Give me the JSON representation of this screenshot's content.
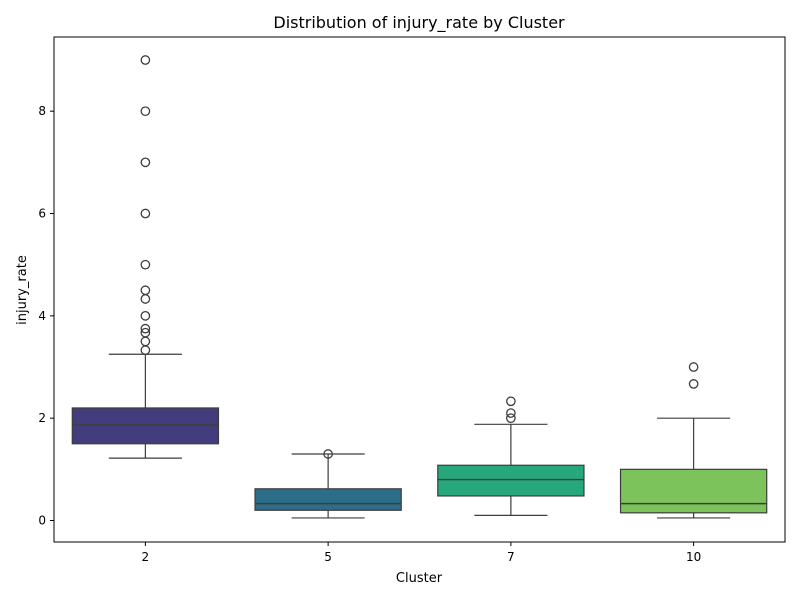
{
  "chart_data": {
    "type": "box",
    "title": "Distribution of injury_rate by Cluster",
    "xlabel": "Cluster",
    "ylabel": "injury_rate",
    "ylim": [
      -0.42,
      9.45
    ],
    "yticks": [
      0,
      2,
      4,
      6,
      8
    ],
    "grid": false,
    "categories": [
      "2",
      "5",
      "7",
      "10"
    ],
    "boxes": [
      {
        "category": "2",
        "whisker_low": 1.22,
        "q1": 1.5,
        "median": 1.87,
        "q3": 2.2,
        "whisker_high": 3.25,
        "outliers": [
          3.33,
          3.5,
          3.67,
          3.75,
          4.0,
          4.33,
          4.5,
          5.0,
          6.0,
          7.0,
          8.0,
          9.0
        ],
        "color": "#433d7e"
      },
      {
        "category": "5",
        "whisker_low": 0.05,
        "q1": 0.2,
        "median": 0.33,
        "q3": 0.62,
        "whisker_high": 1.3,
        "outliers": [
          1.3
        ],
        "color": "#2c6d87"
      },
      {
        "category": "7",
        "whisker_low": 0.1,
        "q1": 0.48,
        "median": 0.8,
        "q3": 1.08,
        "whisker_high": 1.88,
        "outliers": [
          2.0,
          2.1,
          2.33
        ],
        "color": "#27a87c"
      },
      {
        "category": "10",
        "whisker_low": 0.05,
        "q1": 0.15,
        "median": 0.33,
        "q3": 1.0,
        "whisker_high": 2.0,
        "outliers": [
          2.67,
          3.0
        ],
        "color": "#7dc35b"
      }
    ]
  }
}
